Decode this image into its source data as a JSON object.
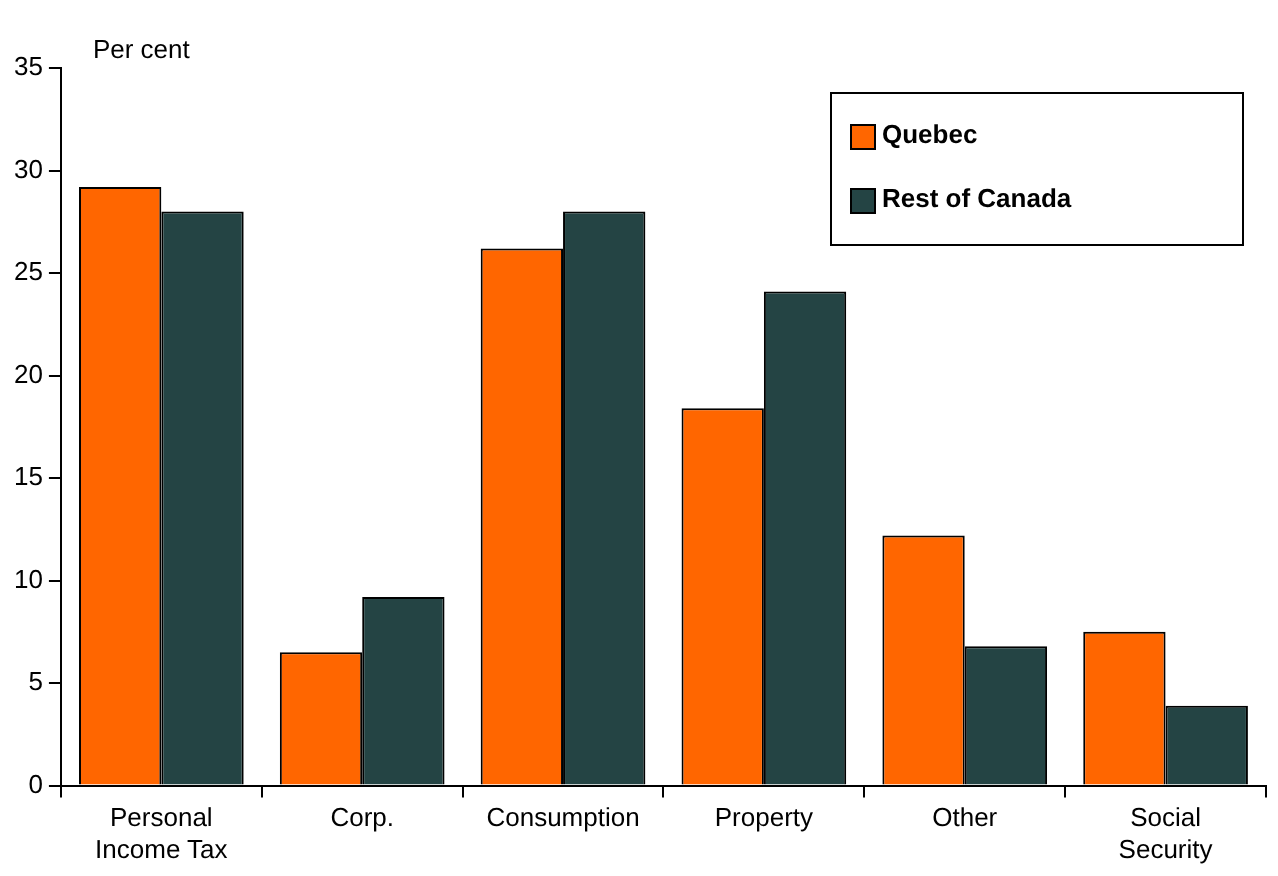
{
  "chart_data": {
    "type": "bar",
    "ylabel": "Per cent",
    "categories": [
      "Personal\nIncome Tax",
      "Corp.",
      "Consumption",
      "Property",
      "Other",
      "Social\nSecurity"
    ],
    "series": [
      {
        "name": "Quebec",
        "color": "#ff6600",
        "values": [
          29.2,
          6.5,
          26.2,
          18.4,
          12.2,
          7.5
        ]
      },
      {
        "name": "Rest of Canada",
        "color": "#244444",
        "values": [
          28.0,
          9.2,
          28.0,
          24.1,
          6.8,
          3.9
        ]
      }
    ],
    "ylim": [
      0,
      35
    ],
    "yticks": [
      0,
      5,
      10,
      15,
      20,
      25,
      30,
      35
    ],
    "grid": false,
    "legend": "top right"
  }
}
